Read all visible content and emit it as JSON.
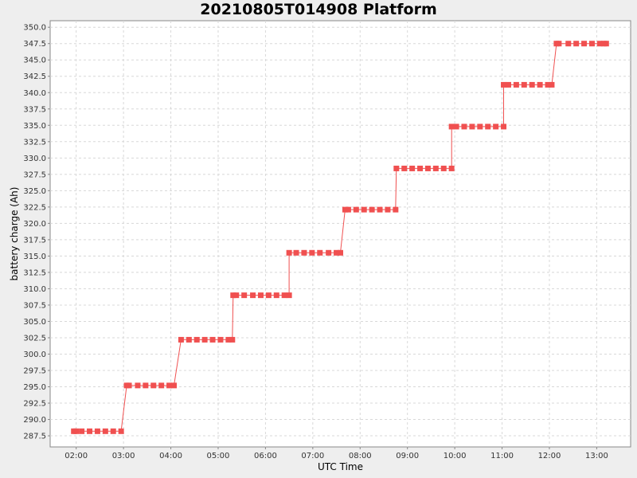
{
  "chart_data": {
    "type": "line",
    "title": "20210805T014908 Platform",
    "xlabel": "UTC Time",
    "ylabel": "battery charge (Ah)",
    "xlim": [
      "01:27",
      "13:43"
    ],
    "ylim": [
      285.8,
      351.0
    ],
    "x_ticks": [
      "02:00",
      "03:00",
      "04:00",
      "05:00",
      "06:00",
      "07:00",
      "08:00",
      "09:00",
      "10:00",
      "11:00",
      "12:00",
      "13:00"
    ],
    "y_ticks": [
      "287.5",
      "290.0",
      "292.5",
      "295.0",
      "297.5",
      "300.0",
      "302.5",
      "305.0",
      "307.5",
      "310.0",
      "312.5",
      "315.0",
      "317.5",
      "320.0",
      "322.5",
      "325.0",
      "327.5",
      "330.0",
      "332.5",
      "335.0",
      "337.5",
      "340.0",
      "342.5",
      "345.0",
      "347.5",
      "350.0"
    ],
    "grid": true,
    "series": [
      {
        "color": "#f05050",
        "points": [
          [
            "01:57",
            288.2
          ],
          [
            "02:00",
            288.2
          ],
          [
            "02:07",
            288.2
          ],
          [
            "02:17",
            288.2
          ],
          [
            "02:27",
            288.2
          ],
          [
            "02:37",
            288.2
          ],
          [
            "02:47",
            288.2
          ],
          [
            "02:57",
            288.2
          ],
          [
            "03:04",
            295.2
          ],
          [
            "03:07",
            295.2
          ],
          [
            "03:18",
            295.2
          ],
          [
            "03:28",
            295.2
          ],
          [
            "03:38",
            295.2
          ],
          [
            "03:48",
            295.2
          ],
          [
            "03:58",
            295.2
          ],
          [
            "04:04",
            295.2
          ],
          [
            "04:13",
            302.2
          ],
          [
            "04:23",
            302.2
          ],
          [
            "04:33",
            302.2
          ],
          [
            "04:43",
            302.2
          ],
          [
            "04:53",
            302.2
          ],
          [
            "05:03",
            302.2
          ],
          [
            "05:13",
            302.2
          ],
          [
            "05:18",
            302.2
          ],
          [
            "05:19",
            309.0
          ],
          [
            "05:23",
            309.0
          ],
          [
            "05:33",
            309.0
          ],
          [
            "05:44",
            309.0
          ],
          [
            "05:54",
            309.0
          ],
          [
            "06:04",
            309.0
          ],
          [
            "06:14",
            309.0
          ],
          [
            "06:24",
            309.0
          ],
          [
            "06:30",
            309.0
          ],
          [
            "06:30",
            315.5
          ],
          [
            "06:39",
            315.5
          ],
          [
            "06:49",
            315.5
          ],
          [
            "06:59",
            315.5
          ],
          [
            "07:09",
            315.5
          ],
          [
            "07:20",
            315.5
          ],
          [
            "07:30",
            315.5
          ],
          [
            "07:35",
            315.5
          ],
          [
            "07:41",
            322.1
          ],
          [
            "07:45",
            322.1
          ],
          [
            "07:55",
            322.1
          ],
          [
            "08:05",
            322.1
          ],
          [
            "08:15",
            322.1
          ],
          [
            "08:25",
            322.1
          ],
          [
            "08:35",
            322.1
          ],
          [
            "08:45",
            322.1
          ],
          [
            "08:46",
            328.4
          ],
          [
            "08:56",
            328.4
          ],
          [
            "09:06",
            328.4
          ],
          [
            "09:16",
            328.4
          ],
          [
            "09:26",
            328.4
          ],
          [
            "09:36",
            328.4
          ],
          [
            "09:46",
            328.4
          ],
          [
            "09:56",
            328.4
          ],
          [
            "09:56",
            334.8
          ],
          [
            "10:02",
            334.8
          ],
          [
            "10:12",
            334.8
          ],
          [
            "10:22",
            334.8
          ],
          [
            "10:32",
            334.8
          ],
          [
            "10:42",
            334.8
          ],
          [
            "10:52",
            334.8
          ],
          [
            "11:02",
            334.8
          ],
          [
            "11:02",
            341.2
          ],
          [
            "11:08",
            341.2
          ],
          [
            "11:18",
            341.2
          ],
          [
            "11:28",
            341.2
          ],
          [
            "11:38",
            341.2
          ],
          [
            "11:48",
            341.2
          ],
          [
            "11:58",
            341.2
          ],
          [
            "12:03",
            341.2
          ],
          [
            "12:09",
            347.5
          ],
          [
            "12:12",
            347.5
          ],
          [
            "12:24",
            347.5
          ],
          [
            "12:34",
            347.5
          ],
          [
            "12:44",
            347.5
          ],
          [
            "12:54",
            347.5
          ],
          [
            "13:04",
            347.5
          ],
          [
            "13:09",
            347.5
          ],
          [
            "13:12",
            347.5
          ]
        ]
      }
    ]
  }
}
